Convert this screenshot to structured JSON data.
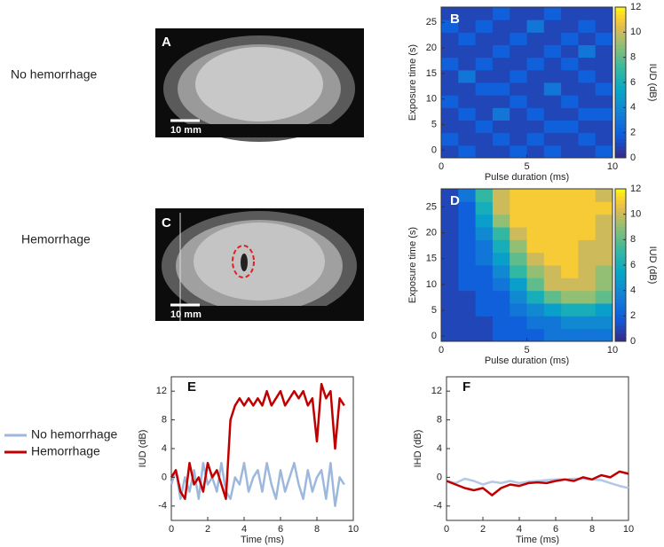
{
  "row_labels": [
    "No hemorrhage",
    "Hemorrhage"
  ],
  "chart_data": [
    {
      "type": "image",
      "panel": "A",
      "scale_bar": "10 mm"
    },
    {
      "type": "heatmap",
      "panel": "B",
      "xlabel": "Pulse duration (ms)",
      "ylabel": "Exposure time (s)",
      "colorbar_label": "IUD (dB)",
      "xlim": [
        0,
        10
      ],
      "xticks": [
        0,
        5,
        10
      ],
      "ylim": [
        -1.5,
        28
      ],
      "yticks": [
        0,
        5,
        10,
        15,
        20,
        25
      ],
      "clim": [
        0,
        12
      ],
      "cticks": [
        0,
        2,
        4,
        6,
        8,
        10,
        12
      ],
      "values": [
        [
          1,
          2,
          1,
          1,
          2,
          1,
          2,
          1,
          1,
          2
        ],
        [
          2,
          1,
          1,
          2,
          1,
          2,
          1,
          1,
          2,
          1
        ],
        [
          1,
          1,
          2,
          1,
          1,
          1,
          2,
          2,
          1,
          1
        ],
        [
          1,
          2,
          1,
          3,
          1,
          2,
          1,
          1,
          2,
          2
        ],
        [
          2,
          1,
          1,
          1,
          2,
          1,
          1,
          2,
          1,
          1
        ],
        [
          1,
          1,
          2,
          2,
          1,
          1,
          3,
          1,
          1,
          2
        ],
        [
          1,
          3,
          1,
          1,
          2,
          1,
          1,
          1,
          2,
          1
        ],
        [
          2,
          1,
          2,
          1,
          1,
          2,
          1,
          2,
          1,
          1
        ],
        [
          1,
          1,
          1,
          2,
          1,
          1,
          2,
          1,
          3,
          1
        ],
        [
          1,
          2,
          1,
          1,
          2,
          1,
          1,
          2,
          1,
          2
        ],
        [
          2,
          1,
          2,
          1,
          1,
          3,
          1,
          1,
          2,
          1
        ],
        [
          1,
          1,
          1,
          2,
          1,
          1,
          2,
          1,
          1,
          1
        ]
      ]
    },
    {
      "type": "image",
      "panel": "C",
      "scale_bar": "10 mm"
    },
    {
      "type": "heatmap",
      "panel": "D",
      "xlabel": "Pulse duration (ms)",
      "ylabel": "Exposure time (s)",
      "colorbar_label": "IUD (dB)",
      "xlim": [
        0,
        10
      ],
      "xticks": [
        0,
        5,
        10
      ],
      "ylim": [
        -1,
        28.5
      ],
      "yticks": [
        0,
        5,
        10,
        15,
        20,
        25
      ],
      "clim": [
        0,
        12
      ],
      "cticks": [
        0,
        2,
        4,
        6,
        8,
        10,
        12
      ],
      "values": [
        [
          1,
          1,
          1,
          2,
          2,
          2,
          3,
          3,
          3,
          3
        ],
        [
          1,
          1,
          1,
          2,
          2,
          3,
          3,
          4,
          4,
          4
        ],
        [
          1,
          1,
          2,
          2,
          3,
          4,
          5,
          6,
          6,
          5
        ],
        [
          1,
          1,
          2,
          2,
          4,
          6,
          8,
          9,
          9,
          8
        ],
        [
          1,
          2,
          2,
          3,
          5,
          8,
          10,
          10,
          10,
          9
        ],
        [
          1,
          2,
          2,
          4,
          7,
          9,
          10,
          11,
          10,
          9
        ],
        [
          1,
          2,
          3,
          5,
          8,
          10,
          11,
          11,
          10,
          10
        ],
        [
          1,
          2,
          3,
          6,
          9,
          11,
          11,
          11,
          10,
          10
        ],
        [
          1,
          2,
          4,
          7,
          10,
          11,
          11,
          11,
          11,
          10
        ],
        [
          1,
          2,
          5,
          9,
          11,
          11,
          11,
          11,
          11,
          10
        ],
        [
          1,
          2,
          6,
          10,
          11,
          11,
          11,
          11,
          11,
          11
        ],
        [
          1,
          3,
          7,
          10,
          11,
          11,
          11,
          11,
          11,
          10
        ]
      ]
    },
    {
      "type": "line",
      "panel": "E",
      "xlabel": "Time (ms)",
      "ylabel": "IUD (dB)",
      "legend": "left",
      "xlim": [
        0,
        10
      ],
      "xticks": [
        0,
        2,
        4,
        6,
        8,
        10
      ],
      "ylim": [
        -6,
        14
      ],
      "yticks": [
        -4,
        0,
        4,
        8,
        12
      ],
      "x": [
        0,
        0.25,
        0.5,
        0.75,
        1,
        1.25,
        1.5,
        1.75,
        2,
        2.25,
        2.5,
        2.75,
        3,
        3.25,
        3.5,
        3.75,
        4,
        4.25,
        4.5,
        4.75,
        5,
        5.25,
        5.5,
        5.75,
        6,
        6.25,
        6.5,
        6.75,
        7,
        7.25,
        7.5,
        7.75,
        8,
        8.25,
        8.5,
        8.75,
        9,
        9.25,
        9.5
      ],
      "series": [
        {
          "name": "No hemorrhage",
          "color": "#9db8dc",
          "values": [
            -1,
            1,
            -3,
            0,
            -2,
            1,
            -3,
            2,
            -1,
            0,
            -2,
            2,
            -2,
            -3,
            0,
            -1,
            2,
            -2,
            0,
            1,
            -2,
            2,
            -1,
            -3,
            1,
            -2,
            0,
            2,
            -1,
            -3,
            1,
            -2,
            0,
            1,
            -3,
            2,
            -4,
            0,
            -1
          ]
        },
        {
          "name": "Hemorrhage",
          "color": "#c00000",
          "values": [
            0,
            1,
            -2,
            -3,
            2,
            -1,
            0,
            -2,
            2,
            0,
            1,
            -1,
            -3,
            8,
            10,
            11,
            10,
            11,
            10,
            11,
            10,
            12,
            10,
            11,
            12,
            10,
            11,
            12,
            11,
            12,
            10,
            11,
            5,
            13,
            11,
            12,
            4,
            11,
            10
          ]
        }
      ]
    },
    {
      "type": "line",
      "panel": "F",
      "xlabel": "Time (ms)",
      "ylabel": "IHD (dB)",
      "xlim": [
        0,
        10
      ],
      "xticks": [
        0,
        2,
        4,
        6,
        8,
        10
      ],
      "ylim": [
        -6,
        14
      ],
      "yticks": [
        -4,
        0,
        4,
        8,
        12
      ],
      "x": [
        0,
        0.5,
        1,
        1.5,
        2,
        2.5,
        3,
        3.5,
        4,
        4.5,
        5,
        5.5,
        6,
        6.5,
        7,
        7.5,
        8,
        8.5,
        9,
        9.5,
        10
      ],
      "series": [
        {
          "name": "No hemorrhage",
          "color": "#b4c7e7",
          "values": [
            -0.5,
            -0.8,
            -0.2,
            -0.5,
            -1,
            -0.6,
            -0.8,
            -0.5,
            -0.8,
            -0.6,
            -0.5,
            -0.4,
            -0.3,
            -0.3,
            -0.2,
            -0.2,
            -0.3,
            -0.4,
            -0.8,
            -1.2,
            -1.5
          ]
        },
        {
          "name": "Hemorrhage",
          "color": "#c00000",
          "values": [
            -0.5,
            -1,
            -1.5,
            -1.8,
            -1.5,
            -2.5,
            -1.5,
            -1,
            -1.2,
            -0.8,
            -0.7,
            -0.8,
            -0.5,
            -0.3,
            -0.5,
            0,
            -0.3,
            0.3,
            0,
            0.8,
            0.5
          ]
        }
      ]
    }
  ]
}
